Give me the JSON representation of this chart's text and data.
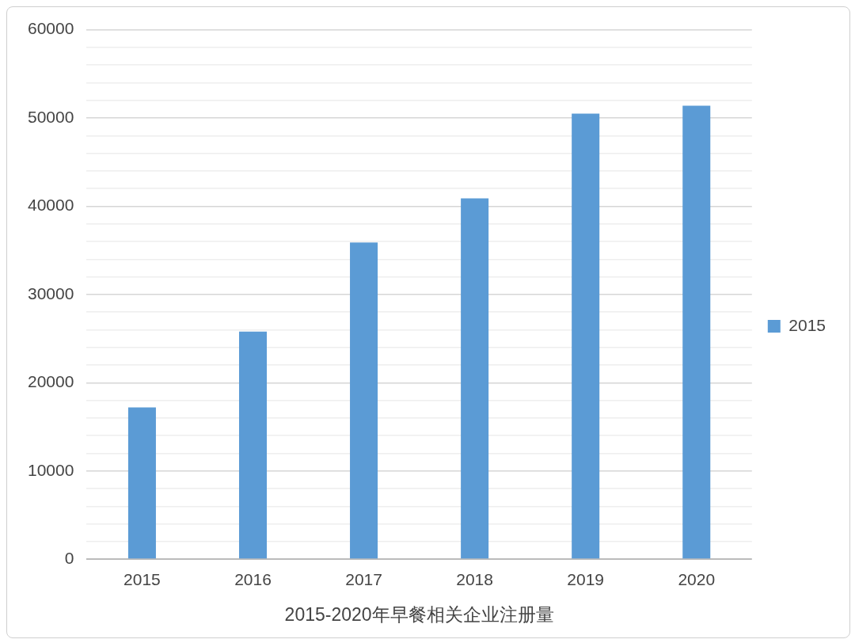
{
  "chart_data": {
    "type": "bar",
    "xlabel": "2015-2020年早餐相关企业注册量",
    "categories": [
      "2015",
      "2016",
      "2017",
      "2018",
      "2019",
      "2020"
    ],
    "series": [
      {
        "name": "2015",
        "color": "#5b9bd5",
        "values": [
          17200,
          25800,
          35900,
          40900,
          50500,
          51400
        ]
      }
    ],
    "ylim": [
      0,
      60000
    ],
    "yticks": [
      0,
      {
        "value": 2000,
        "label": null
      },
      {
        "value": 4000,
        "label": null
      },
      {
        "value": 6000,
        "label": null
      },
      {
        "value": 8000,
        "label": null
      },
      10000,
      {
        "value": 12000,
        "label": null
      },
      {
        "value": 14000,
        "label": null
      },
      {
        "value": 16000,
        "label": null
      },
      {
        "value": 18000,
        "label": null
      },
      20000,
      {
        "value": 22000,
        "label": null
      },
      {
        "value": 24000,
        "label": null
      },
      {
        "value": 26000,
        "label": null
      },
      {
        "value": 28000,
        "label": null
      },
      30000,
      {
        "value": 32000,
        "label": null
      },
      {
        "value": 34000,
        "label": null
      },
      {
        "value": 36000,
        "label": null
      },
      {
        "value": 38000,
        "label": null
      },
      40000,
      {
        "value": 42000,
        "label": null
      },
      {
        "value": 44000,
        "label": null
      },
      {
        "value": 46000,
        "label": null
      },
      {
        "value": 48000,
        "label": null
      },
      50000,
      {
        "value": 52000,
        "label": null
      },
      {
        "value": 54000,
        "label": null
      },
      {
        "value": 56000,
        "label": null
      },
      {
        "value": 58000,
        "label": null
      },
      60000
    ],
    "grid": "y",
    "legend": "right"
  }
}
